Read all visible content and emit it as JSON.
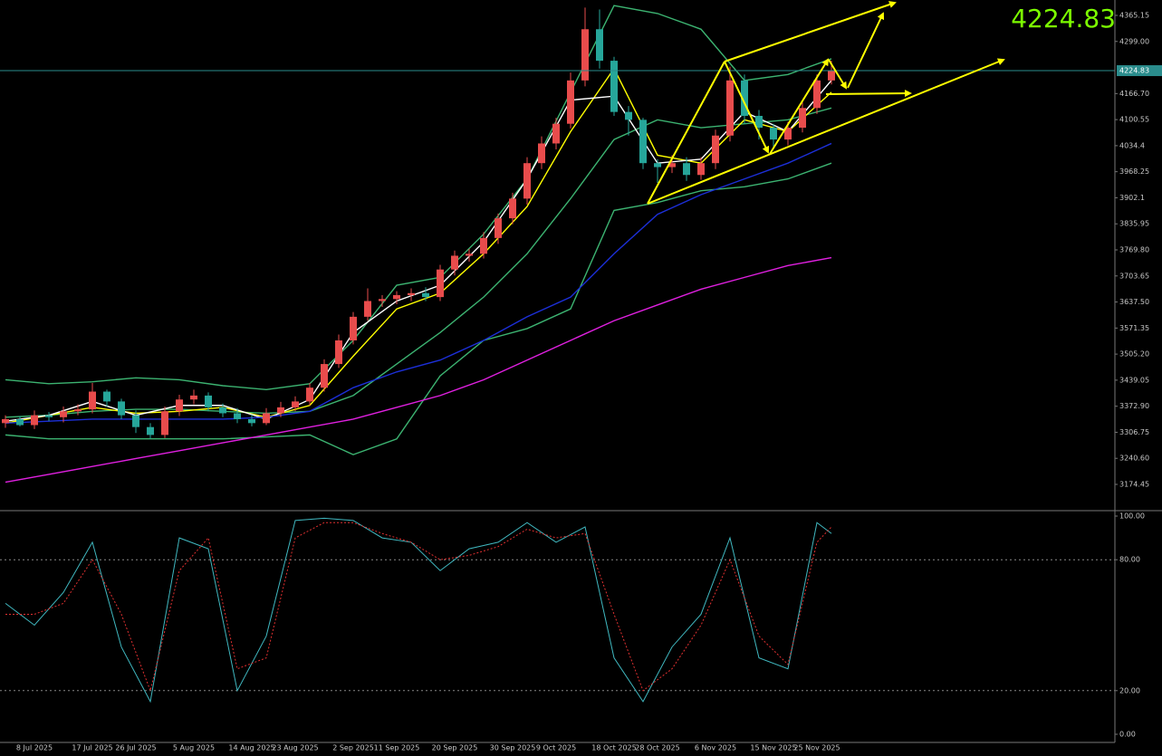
{
  "chart_data": [
    {
      "type": "candlestick",
      "current_price": 4224.83,
      "price_color": "#7cfc00",
      "up_color": "#e84c4c",
      "down_color": "#26a69a",
      "categories": [
        null,
        null,
        "8 Jul 2025",
        null,
        null,
        null,
        "17 Jul 2025",
        null,
        null,
        "26 Jul 2025",
        null,
        null,
        null,
        "5 Aug 2025",
        null,
        null,
        null,
        "14 Aug 2025",
        null,
        null,
        "23 Aug 2025",
        null,
        null,
        null,
        "2 Sep 2025",
        null,
        null,
        "11 Sep 2025",
        null,
        null,
        null,
        "20 Sep 2025",
        null,
        null,
        null,
        "30 Sep 2025",
        null,
        null,
        "9 Oct 2025",
        null,
        null,
        null,
        "18 Oct 2025",
        null,
        null,
        "28 Oct 2025",
        null,
        null,
        null,
        "6 Nov 2025",
        null,
        null,
        null,
        "15 Nov 2025",
        null,
        null,
        "25 Nov 2025",
        null
      ],
      "open": [
        3330,
        3340,
        3325,
        3350,
        3345,
        3360,
        3365,
        3410,
        3385,
        3350,
        3320,
        3300,
        3360,
        3390,
        3400,
        3370,
        3355,
        3340,
        3330,
        3355,
        3370,
        3385,
        3420,
        3480,
        3540,
        3600,
        3640,
        3645,
        3655,
        3660,
        3650,
        3720,
        3755,
        3760,
        3800,
        3850,
        3900,
        3990,
        4040,
        4090,
        4200,
        4330,
        4250,
        4120,
        4100,
        3990,
        3980,
        3990,
        3960,
        3990,
        4060,
        4200,
        4110,
        4080,
        4050,
        4080,
        4130,
        4200
      ],
      "high": [
        3350,
        3348,
        3362,
        3358,
        3372,
        3378,
        3432,
        3415,
        3392,
        3362,
        3330,
        3372,
        3402,
        3415,
        3408,
        3380,
        3368,
        3352,
        3368,
        3384,
        3398,
        3432,
        3492,
        3555,
        3612,
        3672,
        3655,
        3665,
        3672,
        3675,
        3732,
        3768,
        3772,
        3815,
        3862,
        3915,
        4005,
        4058,
        4105,
        4220,
        4385,
        4380,
        4260,
        4135,
        4105,
        4000,
        4010,
        4005,
        4005,
        4075,
        4235,
        4215,
        4125,
        4090,
        4095,
        4145,
        4215,
        4250
      ],
      "low": [
        3318,
        3322,
        3315,
        3335,
        3332,
        3350,
        3355,
        3372,
        3340,
        3305,
        3290,
        3292,
        3348,
        3378,
        3360,
        3345,
        3330,
        3322,
        3325,
        3345,
        3360,
        3375,
        3410,
        3470,
        3530,
        3590,
        3625,
        3632,
        3640,
        3640,
        3640,
        3705,
        3740,
        3748,
        3785,
        3835,
        3885,
        3975,
        4025,
        4078,
        4185,
        4230,
        4110,
        4060,
        3975,
        3940,
        3965,
        3945,
        3948,
        3975,
        4045,
        4090,
        4050,
        4030,
        4035,
        4068,
        4115,
        4190
      ],
      "close": [
        3340,
        3325,
        3350,
        3345,
        3360,
        3365,
        3410,
        3385,
        3350,
        3320,
        3300,
        3360,
        3390,
        3400,
        3370,
        3355,
        3340,
        3330,
        3355,
        3370,
        3385,
        3420,
        3480,
        3540,
        3600,
        3640,
        3645,
        3655,
        3660,
        3650,
        3720,
        3755,
        3760,
        3800,
        3850,
        3900,
        3990,
        4040,
        4090,
        4200,
        4330,
        4250,
        4120,
        4100,
        3990,
        3980,
        3990,
        3960,
        3990,
        4060,
        4200,
        4110,
        4080,
        4050,
        4080,
        4130,
        4200,
        4225
      ],
      "overlay_x": [
        0,
        3,
        6,
        9,
        12,
        15,
        18,
        21,
        24,
        27,
        30,
        33,
        36,
        39,
        42,
        45,
        48,
        51,
        54,
        57
      ],
      "overlays": [
        {
          "color": "#3cb371",
          "values": [
            3440,
            3430,
            3435,
            3445,
            3440,
            3425,
            3415,
            3430,
            3540,
            3680,
            3700,
            3810,
            3950,
            4170,
            4390,
            4370,
            4330,
            4200,
            4215,
            4255
          ]
        },
        {
          "color": "#3cb371",
          "values": [
            3345,
            3350,
            3360,
            3365,
            3365,
            3360,
            3355,
            3360,
            3400,
            3480,
            3560,
            3650,
            3760,
            3900,
            4050,
            4100,
            4080,
            4090,
            4100,
            4130
          ]
        },
        {
          "color": "#3cb371",
          "values": [
            3300,
            3290,
            3290,
            3290,
            3290,
            3290,
            3295,
            3300,
            3250,
            3290,
            3450,
            3540,
            3570,
            3620,
            3870,
            3890,
            3920,
            3930,
            3950,
            3990
          ]
        },
        {
          "color": "#ffff00",
          "values": [
            3330,
            3350,
            3370,
            3355,
            3360,
            3370,
            3345,
            3375,
            3500,
            3620,
            3660,
            3760,
            3880,
            4070,
            4230,
            4010,
            3990,
            4100,
            4070,
            4170
          ]
        },
        {
          "color": "#ffffff",
          "values": [
            3335,
            3350,
            3385,
            3350,
            3375,
            3375,
            3340,
            3390,
            3560,
            3640,
            3680,
            3790,
            3950,
            4150,
            4160,
            3990,
            4000,
            4120,
            4070,
            4200
          ]
        },
        {
          "color": "#1c2fd8",
          "values": [
            3330,
            3335,
            3340,
            3340,
            3340,
            3340,
            3345,
            3360,
            3420,
            3460,
            3490,
            3540,
            3600,
            3650,
            3760,
            3860,
            3910,
            3950,
            3990,
            4040
          ]
        },
        {
          "color": "#e020e0",
          "values": [
            3180,
            3200,
            3220,
            3240,
            3260,
            3280,
            3300,
            3320,
            3340,
            3370,
            3400,
            3440,
            3490,
            3540,
            3590,
            3630,
            3670,
            3700,
            3730,
            3750
          ]
        }
      ],
      "ylim": [
        3110.1,
        4404.2
      ],
      "yticks": [
        4365.15,
        {
          "value": 4299,
          "label": "4299.00"
        },
        {
          "value": 4166.7,
          "label": "4166.70"
        },
        4100.55,
        4034.4,
        3968.25,
        3902.1,
        3835.95,
        {
          "value": 3769.8,
          "label": "3769.80"
        },
        3703.65,
        {
          "value": 3637.5,
          "label": "3637.50"
        },
        3571.35,
        {
          "value": 3505.2,
          "label": "3505.20"
        },
        3439.05,
        {
          "value": 3372.9,
          "label": "3372.90"
        },
        3306.75,
        {
          "value": 3240.6,
          "label": "3240.60"
        },
        3174.45
      ]
    },
    {
      "type": "oscillator",
      "x": [
        0,
        2,
        4,
        6,
        8,
        10,
        12,
        14,
        16,
        18,
        20,
        22,
        24,
        26,
        28,
        30,
        32,
        34,
        36,
        38,
        40,
        42,
        44,
        46,
        48,
        50,
        52,
        54,
        56,
        57
      ],
      "series": [
        {
          "color": "#40b8c0",
          "values": [
            60,
            50,
            65,
            88,
            40,
            15,
            90,
            85,
            20,
            45,
            98,
            99,
            98,
            90,
            88,
            75,
            85,
            88,
            97,
            88,
            95,
            35,
            15,
            40,
            55,
            90,
            35,
            30,
            97,
            92
          ]
        },
        {
          "color": "#e03030",
          "values": [
            55,
            55,
            60,
            80,
            55,
            20,
            75,
            90,
            30,
            35,
            90,
            97,
            97,
            92,
            88,
            80,
            82,
            86,
            94,
            90,
            92,
            55,
            20,
            30,
            50,
            80,
            45,
            32,
            88,
            95
          ]
        }
      ],
      "ylim": [
        0,
        100
      ],
      "yticks": [
        {
          "value": 100,
          "label": "100.00"
        },
        {
          "value": 80,
          "label": "80.00"
        },
        {
          "value": 20,
          "label": "20.00"
        },
        {
          "value": 0,
          "label": "0.00"
        }
      ],
      "levels": [
        80,
        20
      ]
    }
  ]
}
